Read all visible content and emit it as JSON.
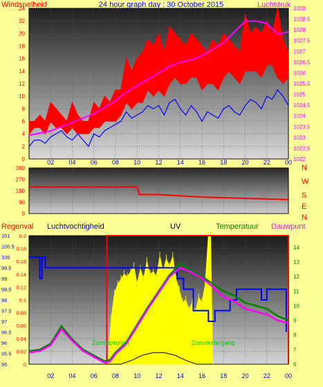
{
  "title": "24 hour graph day : 30 October 2015",
  "colors": {
    "background": "#ffff99",
    "red": "#ff0000",
    "blue": "#0000ff",
    "magenta": "#ff00ff",
    "green": "#008000",
    "yellow": "#ffff00",
    "black": "#000000"
  },
  "x_ticks": [
    "02",
    "04",
    "06",
    "08",
    "10",
    "12",
    "14",
    "16",
    "18",
    "20",
    "22",
    "00"
  ],
  "chart_data": [
    {
      "type": "line",
      "id": "wind-pressure",
      "left_label": "Windsnelheid",
      "right_label": "Luchtdruk",
      "left_axis": {
        "ticks": [
          "0",
          "2",
          "4",
          "6",
          "8",
          "10",
          "12",
          "14",
          "16",
          "18",
          "20",
          "22",
          "24"
        ],
        "ylim": [
          0,
          24
        ]
      },
      "right_axis": {
        "ticks": [
          "1022",
          "1022.5",
          "1023",
          "1023.5",
          "1024",
          "1024.5",
          "1025",
          "1025.5",
          "1026",
          "1026.5",
          "1027",
          "1027.5",
          "1028",
          "1028.5",
          "1029"
        ],
        "ylim": [
          1022,
          1029
        ]
      },
      "xlim": [
        0,
        24
      ],
      "series": [
        {
          "name": "",
          "color": "#ff0000",
          "axis": "left",
          "style": "gust-band",
          "x": [
            0,
            0.5,
            1,
            1.5,
            2,
            2.5,
            3,
            3.5,
            4,
            4.5,
            5,
            5.5,
            6,
            6.5,
            7,
            7.5,
            8,
            8.5,
            9,
            9.5,
            10,
            10.5,
            11,
            11.5,
            12,
            12.5,
            13,
            13.5,
            14,
            14.5,
            15,
            15.5,
            16,
            16.5,
            17,
            17.5,
            18,
            18.5,
            19,
            19.5,
            20,
            20.5,
            21,
            21.5,
            22,
            22.5,
            23,
            23.5,
            24
          ],
          "low": [
            4,
            5,
            5,
            4,
            6,
            5,
            5,
            4,
            5,
            4,
            4,
            4,
            5,
            5,
            6,
            6,
            6,
            7,
            9,
            8,
            9,
            9,
            11,
            10,
            11,
            10,
            12,
            13,
            12,
            12,
            13,
            13,
            11,
            12,
            12,
            11,
            13,
            14,
            13,
            12,
            14,
            14,
            14,
            13,
            15,
            15,
            13,
            12,
            13
          ],
          "high": [
            6,
            6,
            7,
            6,
            9,
            8,
            7,
            6,
            9,
            7,
            6,
            6,
            9,
            8,
            10,
            9,
            11,
            11,
            16,
            14,
            16,
            17,
            19,
            18,
            20,
            17,
            21,
            20,
            19,
            18,
            20,
            19,
            18,
            17,
            19,
            18,
            20,
            19,
            18,
            17,
            23,
            20,
            21,
            20,
            22,
            20,
            24,
            19,
            17
          ]
        },
        {
          "name": "",
          "color": "#0000ff",
          "axis": "left",
          "x": [
            0,
            0.5,
            1,
            1.5,
            2,
            2.5,
            3,
            3.5,
            4,
            4.5,
            5,
            5.5,
            6,
            6.5,
            7,
            7.5,
            8,
            8.5,
            9,
            9.5,
            10,
            10.5,
            11,
            11.5,
            12,
            12.5,
            13,
            13.5,
            14,
            14.5,
            15,
            15.5,
            16,
            16.5,
            17,
            17.5,
            18,
            18.5,
            19,
            19.5,
            20,
            20.5,
            21,
            21.5,
            22,
            22.5,
            23,
            23.5,
            24
          ],
          "y": [
            2,
            3,
            3,
            2.5,
            3.5,
            4,
            4.5,
            3.5,
            3,
            4,
            3,
            2,
            4,
            3.5,
            4.5,
            5,
            5.5,
            6,
            7.5,
            6.5,
            7,
            7.5,
            8.5,
            8,
            8.5,
            7,
            9,
            9.5,
            8,
            7,
            8.5,
            7.5,
            6,
            7.5,
            7,
            6.5,
            8,
            8.5,
            7.5,
            7,
            8.5,
            9.5,
            9,
            8,
            10,
            9.5,
            11,
            10,
            8.5
          ]
        },
        {
          "name": "",
          "color": "#ff00ff",
          "axis": "right",
          "x": [
            0,
            1,
            2,
            3,
            4,
            5,
            6,
            7,
            8,
            9,
            10,
            11,
            12,
            13,
            14,
            15,
            16,
            17,
            18,
            19,
            20,
            21,
            22,
            23,
            24
          ],
          "y": [
            1023.1,
            1023.2,
            1023.3,
            1023.5,
            1023.7,
            1023.9,
            1024.1,
            1024.4,
            1024.7,
            1025.1,
            1025.4,
            1025.7,
            1026.0,
            1026.3,
            1026.5,
            1026.6,
            1026.8,
            1027.1,
            1027.4,
            1027.9,
            1028.4,
            1028.4,
            1028.3,
            1027.8,
            1027.9
          ]
        }
      ]
    },
    {
      "type": "line",
      "id": "wind-direction",
      "left_axis": {
        "ticks": [
          "0",
          "90",
          "180",
          "270",
          "360"
        ],
        "ylim": [
          0,
          360
        ]
      },
      "right_labels": [
        "N",
        "W",
        "S",
        "E",
        "N"
      ],
      "xlim": [
        0,
        24
      ],
      "series": [
        {
          "name": "",
          "color": "#ff0000",
          "x": [
            0,
            10,
            10.2,
            12,
            14,
            16,
            18,
            20,
            22,
            24
          ],
          "y": [
            210,
            210,
            150,
            150,
            140,
            130,
            125,
            120,
            115,
            110
          ]
        }
      ]
    },
    {
      "type": "line",
      "id": "rain-humidity-uv-temp",
      "labels": {
        "rain": "Regenval",
        "humidity": "Luchtvochtigheid",
        "uv": "UV",
        "temp": "Temperatuur",
        "dew": "Dauwpunt"
      },
      "annotations": [
        "Zonsopkomst",
        "Zonsondergang"
      ],
      "rain_axis": {
        "ticks": [
          "0",
          "0.02",
          "0.04",
          "0.06",
          "0.08",
          "0.1",
          "0.12",
          "0.14",
          "0.16",
          "0.18",
          "0.2"
        ],
        "ylim": [
          0,
          0.2
        ]
      },
      "humidity_axis": {
        "ticks": [
          "95",
          "95.5",
          "96",
          "96.5",
          "97",
          "97.5",
          "98",
          "98.5",
          "99",
          "99.5",
          "100",
          "100.5",
          "101"
        ],
        "ylim": [
          95,
          101
        ]
      },
      "temp_axis": {
        "ticks": [
          "6",
          "7",
          "8",
          "9",
          "10",
          "11",
          "12",
          "13",
          "14"
        ],
        "ylim": [
          6,
          14.8
        ]
      },
      "xlim": [
        0,
        24
      ],
      "series": [
        {
          "name": "Luchtvochtigheid",
          "color": "#0000ff",
          "axis": "humidity",
          "step": true,
          "x": [
            0,
            1,
            1,
            1.2,
            1.2,
            1.5,
            1.5,
            13.7,
            13.7,
            14.3,
            14.3,
            15.2,
            15.2,
            16.6,
            16.6,
            17.2,
            17.2,
            18.6,
            18.6,
            19.2,
            19.2,
            19.8,
            19.8,
            21.5,
            21.5,
            22.0,
            22.0,
            23.8,
            23.8
          ],
          "y": [
            100,
            100,
            99,
            99,
            100,
            100,
            99.5,
            99.5,
            99,
            99,
            98.5,
            98.5,
            97.5,
            97.5,
            97,
            97,
            97.5,
            97.5,
            98,
            98,
            98.5,
            98.5,
            98.5,
            98.5,
            98,
            98,
            98.5,
            98.5,
            96.5
          ]
        },
        {
          "name": "Temperatuur",
          "color": "#008000",
          "axis": "temp",
          "x": [
            0,
            1,
            2,
            3,
            4,
            5,
            6,
            6.5,
            7,
            7.5,
            8,
            9,
            10,
            11,
            12,
            13,
            14,
            15,
            16,
            17,
            18,
            19,
            20,
            21,
            22,
            23,
            24
          ],
          "y": [
            6.9,
            7.0,
            7.4,
            8.6,
            7.7,
            7.0,
            6.6,
            6.4,
            6.2,
            6.3,
            6.8,
            7.5,
            8.7,
            9.9,
            11.0,
            12.1,
            12.9,
            12.4,
            12.0,
            11.5,
            11.0,
            10.7,
            10.2,
            10.0,
            9.8,
            9.3,
            9.0
          ]
        },
        {
          "name": "Dauwpunt",
          "color": "#ff00ff",
          "axis": "temp",
          "x": [
            0,
            1,
            2,
            3,
            4,
            5,
            6,
            6.5,
            7,
            7.5,
            8,
            9,
            10,
            11,
            12,
            13,
            14,
            15,
            16,
            17,
            18,
            19,
            20,
            21,
            22,
            23,
            24
          ],
          "y": [
            6.8,
            6.9,
            7.3,
            8.4,
            7.6,
            6.9,
            6.5,
            6.3,
            6.1,
            6.2,
            6.7,
            7.4,
            8.6,
            9.8,
            10.9,
            12.0,
            12.6,
            12.3,
            11.9,
            11.3,
            10.6,
            10.3,
            9.8,
            9.6,
            9.4,
            9.0,
            8.8
          ]
        }
      ],
      "uv": {
        "name": "UV",
        "color": "#ffff00",
        "x": [
          7.3,
          7.6,
          7.9,
          8.2,
          8.5,
          8.8,
          9.1,
          9.4,
          9.7,
          10.0,
          10.3,
          10.6,
          10.9,
          11.2,
          11.5,
          11.8,
          12.1,
          12.4,
          12.7,
          13.0,
          13.3,
          13.6,
          13.9,
          14.2,
          14.5,
          14.8,
          15.1,
          15.4,
          15.7,
          16.0,
          16.3,
          16.6,
          16.8,
          17.0
        ],
        "level": [
          0,
          0.35,
          0.55,
          0.62,
          0.66,
          0.7,
          0.68,
          0.72,
          0.76,
          0.62,
          0.74,
          0.66,
          0.8,
          0.7,
          0.72,
          0.68,
          0.84,
          0.72,
          0.82,
          0.76,
          0.84,
          0.66,
          0.58,
          0.48,
          0.5,
          0.42,
          0.48,
          0.4,
          0.52,
          0.48,
          0.62,
          1.0,
          1.0,
          0
        ]
      },
      "rain_box": {
        "color": "#ff0000",
        "x_start": 7.2,
        "x_end": 24,
        "level": 0.2
      },
      "solar": {
        "color": "#000000",
        "x": [
          7.2,
          8.5,
          9.5,
          10.5,
          11.5,
          12.5,
          13.5,
          14.5,
          15.5,
          17.0
        ],
        "level": [
          0,
          0,
          0.03,
          0.07,
          0.09,
          0.09,
          0.07,
          0.03,
          0,
          0
        ]
      }
    }
  ]
}
